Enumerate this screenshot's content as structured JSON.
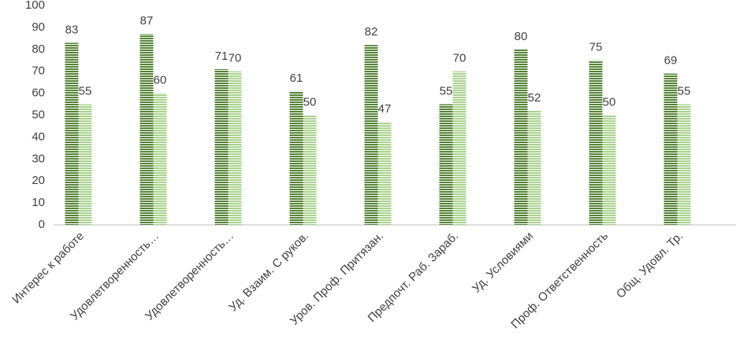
{
  "chart_data": {
    "type": "bar",
    "categories": [
      "Интерес к работе",
      "Удовлетворенность…",
      "Удовлетворенность…",
      "Уд. Взаим. С руков.",
      "Уров. Проф. Притязан.",
      "Предпочт. Раб. Зараб.",
      "Уд. Условиями",
      "Проф. Ответственность",
      "Общ. Удовл. Тр."
    ],
    "series": [
      {
        "color": "#548235",
        "values": [
          83,
          87,
          71,
          61,
          82,
          55,
          80,
          75,
          69
        ]
      },
      {
        "color": "#a9d18e",
        "values": [
          55,
          60,
          70,
          50,
          47,
          70,
          52,
          50,
          55
        ]
      }
    ],
    "ylim": [
      0,
      100
    ],
    "yticks": [
      0,
      10,
      20,
      30,
      40,
      50,
      60,
      70,
      80,
      90,
      100
    ],
    "grid": false
  }
}
